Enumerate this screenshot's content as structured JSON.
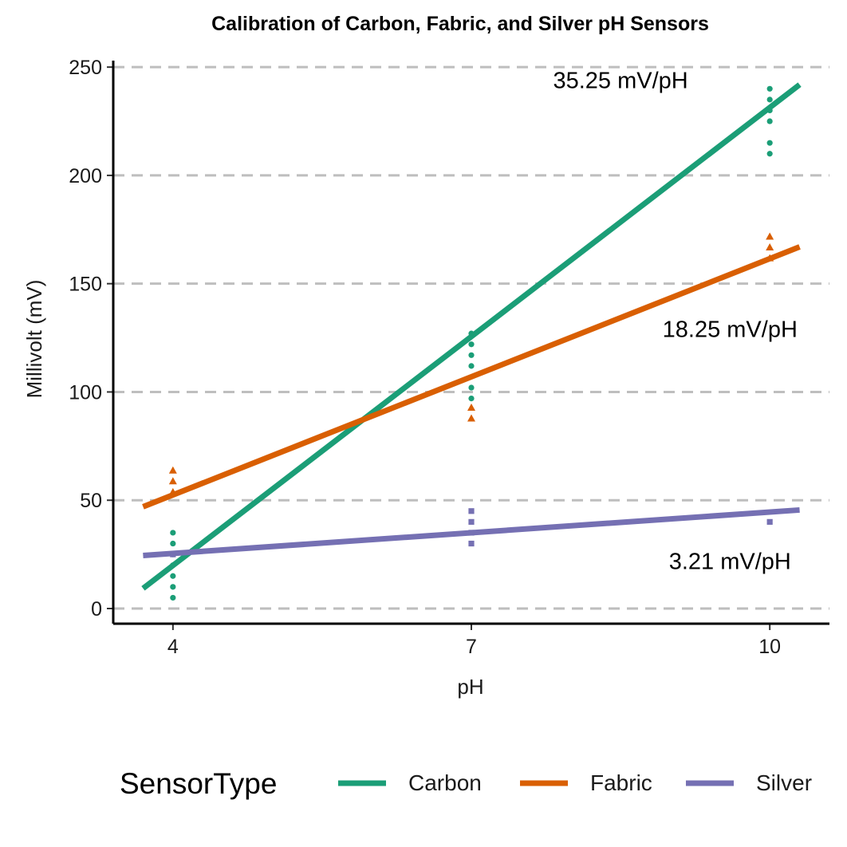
{
  "chart_data": {
    "type": "scatter",
    "title": "Calibration of Carbon, Fabric, and Silver pH Sensors",
    "xlabel": "pH",
    "ylabel": "Millivolt (mV)",
    "x_ticks": [
      4,
      7,
      10
    ],
    "y_ticks": [
      0,
      50,
      100,
      150,
      200,
      250
    ],
    "xlim": [
      3.4,
      10.6
    ],
    "ylim": [
      -7,
      253
    ],
    "grid": "horizontal dashed",
    "legend_position": "bottom",
    "legend_title": "SensorType",
    "series": [
      {
        "name": "Carbon",
        "color": "#1b9e77",
        "marker": "circle",
        "points": [
          {
            "x": 4,
            "y": 5
          },
          {
            "x": 4,
            "y": 10
          },
          {
            "x": 4,
            "y": 15
          },
          {
            "x": 4,
            "y": 20
          },
          {
            "x": 4,
            "y": 25
          },
          {
            "x": 4,
            "y": 30
          },
          {
            "x": 4,
            "y": 35
          },
          {
            "x": 7,
            "y": 97
          },
          {
            "x": 7,
            "y": 102
          },
          {
            "x": 7,
            "y": 112
          },
          {
            "x": 7,
            "y": 117
          },
          {
            "x": 7,
            "y": 122
          },
          {
            "x": 7,
            "y": 127
          },
          {
            "x": 10,
            "y": 210
          },
          {
            "x": 10,
            "y": 215
          },
          {
            "x": 10,
            "y": 225
          },
          {
            "x": 10,
            "y": 230
          },
          {
            "x": 10,
            "y": 235
          },
          {
            "x": 10,
            "y": 240
          }
        ],
        "fit": {
          "x_start": 3.7,
          "x_end": 10.3,
          "y_start": 9.3,
          "y_end": 241.9
        },
        "annotation": {
          "text": "35.25 mV/pH",
          "x": 8.5,
          "y": 244
        }
      },
      {
        "name": "Fabric",
        "color": "#d95f02",
        "marker": "triangle",
        "points": [
          {
            "x": 4,
            "y": 54
          },
          {
            "x": 4,
            "y": 59
          },
          {
            "x": 4,
            "y": 64
          },
          {
            "x": 7,
            "y": 88
          },
          {
            "x": 7,
            "y": 93
          },
          {
            "x": 10,
            "y": 162
          },
          {
            "x": 10,
            "y": 167
          },
          {
            "x": 10,
            "y": 172
          }
        ],
        "fit": {
          "x_start": 3.7,
          "x_end": 10.3,
          "y_start": 47,
          "y_end": 167
        },
        "annotation": {
          "text": "18.25 mV/pH",
          "x": 9.6,
          "y": 129
        }
      },
      {
        "name": "Silver",
        "color": "#7570b3",
        "marker": "square",
        "points": [
          {
            "x": 4,
            "y": 25
          },
          {
            "x": 7,
            "y": 30
          },
          {
            "x": 7,
            "y": 35
          },
          {
            "x": 7,
            "y": 40
          },
          {
            "x": 7,
            "y": 45
          },
          {
            "x": 10,
            "y": 40
          }
        ],
        "fit": {
          "x_start": 3.7,
          "x_end": 10.3,
          "y_start": 24.5,
          "y_end": 45.5
        },
        "annotation": {
          "text": "3.21 mV/pH",
          "x": 9.6,
          "y": 22
        }
      }
    ]
  }
}
